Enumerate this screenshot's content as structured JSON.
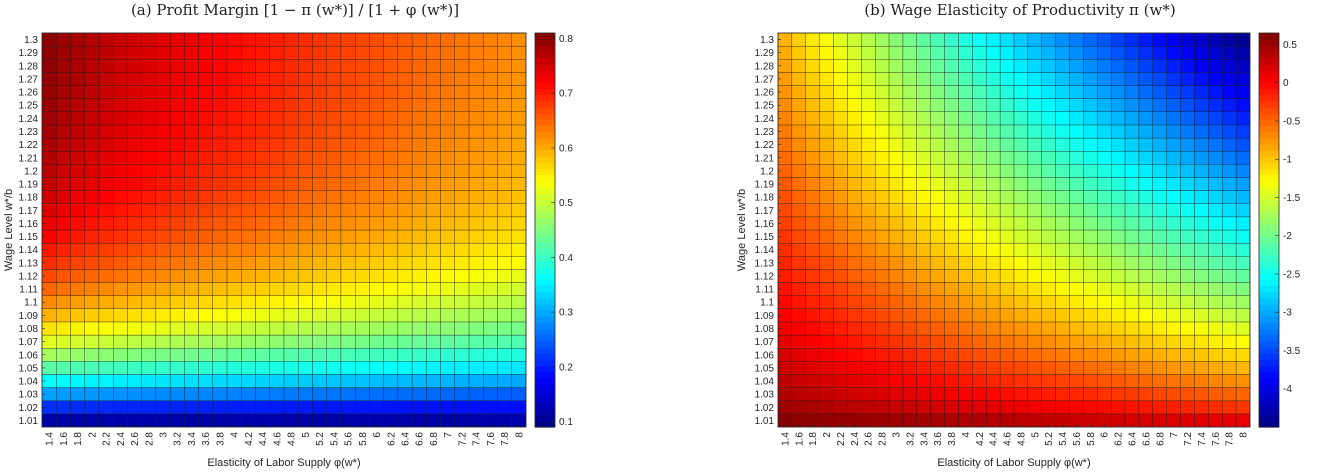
{
  "chart_data": [
    {
      "type": "heatmap",
      "title": "(a) Profit Margin [1 − π (w*)] / [1 + φ (w*)]",
      "xlabel": "Elasticity of Labor Supply  φ(w*)",
      "ylabel": "Wage Level w*/b",
      "x_ticks": [
        "1.4",
        "1.6",
        "1.8",
        "2",
        "2.2",
        "2.4",
        "2.6",
        "2.8",
        "3",
        "3.2",
        "3.4",
        "3.6",
        "3.8",
        "4",
        "4.2",
        "4.4",
        "4.6",
        "4.8",
        "5",
        "5.2",
        "5.4",
        "5.6",
        "5.8",
        "6",
        "6.2",
        "6.4",
        "6.6",
        "6.8",
        "7",
        "7.2",
        "7.4",
        "7.6",
        "7.8",
        "8"
      ],
      "y_ticks": [
        "1.01",
        "1.02",
        "1.03",
        "1.04",
        "1.05",
        "1.06",
        "1.07",
        "1.08",
        "1.09",
        "1.1",
        "1.11",
        "1.12",
        "1.13",
        "1.14",
        "1.15",
        "1.16",
        "1.17",
        "1.18",
        "1.19",
        "1.2",
        "1.21",
        "1.22",
        "1.23",
        "1.24",
        "1.25",
        "1.26",
        "1.27",
        "1.28",
        "1.29",
        "1.3"
      ],
      "colorbar_ticks": [
        "0.1",
        "0.2",
        "0.3",
        "0.4",
        "0.5",
        "0.6",
        "0.7",
        "0.8"
      ],
      "clim": [
        0.09,
        0.81
      ],
      "colormap": "jet",
      "value_model": {
        "description_of_values": "cell value at wage index i (0=1.01 … 29=1.3) and phi index j (0=1.4 … 33=8)",
        "low_row_value": 0.12,
        "high_row_value_left": 0.8,
        "high_row_value_right": 0.62
      }
    },
    {
      "type": "heatmap",
      "title": "(b) Wage Elasticity of Productivity π (w*)",
      "xlabel": "Elasticity of Labor Supply  φ(w*)",
      "ylabel": "Wage Level w*/b",
      "x_ticks": [
        "1.4",
        "1.6",
        "1.8",
        "2",
        "2.2",
        "2.4",
        "2.6",
        "2.8",
        "3",
        "3.2",
        "3.4",
        "3.6",
        "3.8",
        "4",
        "4.2",
        "4.4",
        "4.6",
        "4.8",
        "5",
        "5.2",
        "5.4",
        "5.6",
        "5.8",
        "6",
        "6.2",
        "6.4",
        "6.6",
        "6.8",
        "7",
        "7.2",
        "7.4",
        "7.6",
        "7.8",
        "8"
      ],
      "y_ticks": [
        "1.01",
        "1.02",
        "1.03",
        "1.04",
        "1.05",
        "1.06",
        "1.07",
        "1.08",
        "1.09",
        "1.1",
        "1.11",
        "1.12",
        "1.13",
        "1.14",
        "1.15",
        "1.16",
        "1.17",
        "1.18",
        "1.19",
        "1.2",
        "1.21",
        "1.22",
        "1.23",
        "1.24",
        "1.25",
        "1.26",
        "1.27",
        "1.28",
        "1.29",
        "1.3"
      ],
      "colorbar_ticks": [
        "0.5",
        "0",
        "-0.5",
        "-1",
        "-1.5",
        "-2",
        "-2.5",
        "-3",
        "-3.5",
        "-4"
      ],
      "clim": [
        -4.5,
        0.65
      ],
      "colormap": "jet",
      "value_model": {
        "description_of_values": "cell value at wage index i (0=1.01 … 29=1.3) and phi index j (0=1.4 … 33=8)",
        "bottom_left": 0.6,
        "bottom_right": 0.1,
        "top_left": -0.9,
        "top_right": -4.4
      }
    }
  ]
}
